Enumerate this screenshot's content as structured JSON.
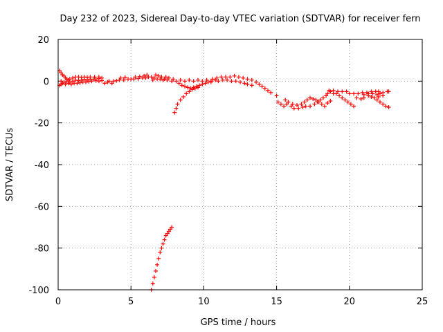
{
  "chart_data": {
    "type": "scatter",
    "title": "Day 232 of 2023, Sidereal Day-to-day VTEC variation (SDTVAR) for receiver fern",
    "xlabel": "GPS time / hours",
    "ylabel": "SDTVAR / TECUs",
    "xlim": [
      0,
      25
    ],
    "ylim": [
      -100,
      20
    ],
    "xticks": [
      "0",
      "5",
      "10",
      "15",
      "20",
      "25"
    ],
    "yticks": [
      "20",
      "0",
      "-20",
      "-40",
      "-60",
      "-80",
      "-100"
    ],
    "xtick_values": [
      0,
      5,
      10,
      15,
      20,
      25
    ],
    "ytick_values": [
      20,
      0,
      -20,
      -40,
      -60,
      -80,
      -100
    ],
    "grid": true,
    "marker": "+",
    "color": "#ff0000",
    "series": [
      {
        "name": "SDTVAR",
        "points": [
          [
            0.1,
            5
          ],
          [
            0.2,
            4
          ],
          [
            0.3,
            3
          ],
          [
            0.4,
            2.5
          ],
          [
            0.5,
            1.5
          ],
          [
            0.6,
            1
          ],
          [
            0.7,
            0.5
          ],
          [
            0.8,
            1
          ],
          [
            1.0,
            1.5
          ],
          [
            1.2,
            2
          ],
          [
            1.4,
            2
          ],
          [
            1.6,
            1.8
          ],
          [
            1.8,
            2
          ],
          [
            2.0,
            1.8
          ],
          [
            2.2,
            2
          ],
          [
            2.5,
            2
          ],
          [
            2.8,
            2
          ],
          [
            3.0,
            1.5
          ],
          [
            0.1,
            -2
          ],
          [
            0.2,
            -1.5
          ],
          [
            0.3,
            -1
          ],
          [
            0.5,
            -1.5
          ],
          [
            0.7,
            -1
          ],
          [
            0.9,
            -1.5
          ],
          [
            1.1,
            -1
          ],
          [
            1.3,
            -1
          ],
          [
            1.5,
            -0.8
          ],
          [
            1.7,
            -0.5
          ],
          [
            1.9,
            -0.5
          ],
          [
            2.1,
            -0.2
          ],
          [
            2.3,
            0
          ],
          [
            2.6,
            0.2
          ],
          [
            2.8,
            0
          ],
          [
            3.0,
            0.3
          ],
          [
            0.2,
            0
          ],
          [
            0.4,
            -0.5
          ],
          [
            0.6,
            0
          ],
          [
            0.8,
            -0.5
          ],
          [
            1.0,
            0
          ],
          [
            1.2,
            0.5
          ],
          [
            1.4,
            0.3
          ],
          [
            1.6,
            0.5
          ],
          [
            1.8,
            0.8
          ],
          [
            2.0,
            0.5
          ],
          [
            2.2,
            1
          ],
          [
            2.4,
            0.8
          ],
          [
            2.6,
            1
          ],
          [
            2.8,
            1.2
          ],
          [
            3.2,
            -1
          ],
          [
            3.4,
            -0.5
          ],
          [
            3.5,
            0
          ],
          [
            3.7,
            -1
          ],
          [
            3.8,
            0
          ],
          [
            4.0,
            0.2
          ],
          [
            4.2,
            0.5
          ],
          [
            4.5,
            0.5
          ],
          [
            4.8,
            1
          ],
          [
            5.0,
            1
          ],
          [
            5.2,
            1
          ],
          [
            5.5,
            1.2
          ],
          [
            5.8,
            1.5
          ],
          [
            6.0,
            1.5
          ],
          [
            6.2,
            2
          ],
          [
            6.4,
            2
          ],
          [
            6.6,
            1.5
          ],
          [
            6.8,
            1
          ],
          [
            7.0,
            1
          ],
          [
            7.2,
            0.5
          ],
          [
            7.5,
            0.5
          ],
          [
            7.8,
            0
          ],
          [
            4.3,
            1.5
          ],
          [
            4.6,
            1.8
          ],
          [
            5.3,
            2
          ],
          [
            5.6,
            2.2
          ],
          [
            5.9,
            2.5
          ],
          [
            6.1,
            3
          ],
          [
            6.5,
            0.5
          ],
          [
            6.7,
            3
          ],
          [
            6.9,
            2.5
          ],
          [
            7.1,
            2
          ],
          [
            7.3,
            1
          ],
          [
            7.4,
            2
          ],
          [
            7.6,
            1.5
          ],
          [
            7.9,
            1
          ],
          [
            8.0,
            -15
          ],
          [
            8.1,
            -13
          ],
          [
            8.2,
            -11
          ],
          [
            8.4,
            -9
          ],
          [
            8.6,
            -7.5
          ],
          [
            8.8,
            -6
          ],
          [
            9.0,
            -5
          ],
          [
            9.2,
            -4
          ],
          [
            9.4,
            -3.5
          ],
          [
            9.6,
            -3
          ],
          [
            8.3,
            -1
          ],
          [
            8.5,
            -2
          ],
          [
            8.7,
            -2.5
          ],
          [
            8.9,
            -3
          ],
          [
            9.1,
            -3.5
          ],
          [
            9.3,
            -3
          ],
          [
            9.5,
            -2.5
          ],
          [
            9.7,
            -2
          ],
          [
            9.9,
            -1.5
          ],
          [
            10.1,
            -1
          ],
          [
            10.3,
            -0.5
          ],
          [
            10.5,
            -0.5
          ],
          [
            8.1,
            0
          ],
          [
            8.4,
            0.5
          ],
          [
            8.7,
            0
          ],
          [
            9.0,
            0.5
          ],
          [
            9.3,
            0
          ],
          [
            9.6,
            0.5
          ],
          [
            9.9,
            0
          ],
          [
            10.2,
            0.5
          ],
          [
            10.5,
            0
          ],
          [
            10.8,
            0.5
          ],
          [
            11.0,
            0
          ],
          [
            11.3,
            0.5
          ],
          [
            11.6,
            0.5
          ],
          [
            11.9,
            0
          ],
          [
            12.2,
            0
          ],
          [
            12.5,
            -0.5
          ],
          [
            12.8,
            -1
          ],
          [
            13.0,
            -1.5
          ],
          [
            13.3,
            -2
          ],
          [
            10.6,
            1
          ],
          [
            10.9,
            1.5
          ],
          [
            11.2,
            2
          ],
          [
            11.5,
            2
          ],
          [
            11.8,
            2
          ],
          [
            12.1,
            2.5
          ],
          [
            12.4,
            2
          ],
          [
            12.7,
            1.5
          ],
          [
            13.0,
            1
          ],
          [
            13.3,
            0.5
          ],
          [
            13.6,
            -0.5
          ],
          [
            13.8,
            -1.5
          ],
          [
            14.0,
            -2.5
          ],
          [
            14.2,
            -3.5
          ],
          [
            14.4,
            -4.5
          ],
          [
            14.6,
            -5.5
          ],
          [
            15.0,
            -7
          ],
          [
            15.1,
            -10
          ],
          [
            15.3,
            -11
          ],
          [
            15.5,
            -12
          ],
          [
            15.7,
            -11
          ],
          [
            16.0,
            -12
          ],
          [
            16.2,
            -13
          ],
          [
            16.5,
            -13
          ],
          [
            16.8,
            -12.5
          ],
          [
            17.0,
            -12
          ],
          [
            17.3,
            -12
          ],
          [
            17.6,
            -11
          ],
          [
            17.8,
            -10
          ],
          [
            18.0,
            -9
          ],
          [
            18.2,
            -8
          ],
          [
            18.4,
            -7
          ],
          [
            15.6,
            -9
          ],
          [
            15.8,
            -10
          ],
          [
            16.1,
            -11
          ],
          [
            16.4,
            -11.5
          ],
          [
            16.7,
            -11
          ],
          [
            16.9,
            -10
          ],
          [
            17.1,
            -9
          ],
          [
            17.3,
            -8
          ],
          [
            17.5,
            -8.5
          ],
          [
            17.7,
            -9
          ],
          [
            17.9,
            -10
          ],
          [
            18.1,
            -11
          ],
          [
            18.3,
            -12
          ],
          [
            18.5,
            -10.5
          ],
          [
            18.7,
            -9.5
          ],
          [
            18.5,
            -6
          ],
          [
            18.7,
            -5
          ],
          [
            18.9,
            -6
          ],
          [
            19.1,
            -6
          ],
          [
            19.3,
            -7
          ],
          [
            19.5,
            -8
          ],
          [
            19.7,
            -9
          ],
          [
            19.9,
            -10
          ],
          [
            20.1,
            -11
          ],
          [
            20.3,
            -12
          ],
          [
            18.6,
            -4.5
          ],
          [
            18.9,
            -4.5
          ],
          [
            19.2,
            -5
          ],
          [
            19.5,
            -5
          ],
          [
            19.8,
            -5
          ],
          [
            20.0,
            -6
          ],
          [
            20.3,
            -6
          ],
          [
            20.6,
            -6
          ],
          [
            20.9,
            -5.5
          ],
          [
            21.2,
            -5.5
          ],
          [
            21.5,
            -5
          ],
          [
            21.8,
            -5
          ],
          [
            22.0,
            -5
          ],
          [
            22.3,
            -5.5
          ],
          [
            22.6,
            -5
          ],
          [
            22.7,
            -5
          ],
          [
            20.5,
            -8
          ],
          [
            20.8,
            -8.5
          ],
          [
            21.0,
            -8
          ],
          [
            21.3,
            -7
          ],
          [
            21.5,
            -7.5
          ],
          [
            21.7,
            -8
          ],
          [
            21.9,
            -9
          ],
          [
            22.1,
            -10
          ],
          [
            22.3,
            -11
          ],
          [
            22.5,
            -12
          ],
          [
            22.7,
            -12.5
          ],
          [
            21.0,
            -6.5
          ],
          [
            21.3,
            -6
          ],
          [
            21.6,
            -6
          ],
          [
            21.9,
            -6.5
          ],
          [
            22.1,
            -6
          ],
          [
            22.3,
            -7
          ],
          [
            22.0,
            -7.5
          ],
          [
            6.4,
            -100
          ],
          [
            6.5,
            -97
          ],
          [
            6.6,
            -94
          ],
          [
            6.7,
            -91
          ],
          [
            6.8,
            -88
          ],
          [
            6.9,
            -85
          ],
          [
            7.0,
            -82
          ],
          [
            7.1,
            -80
          ],
          [
            7.2,
            -78
          ],
          [
            7.3,
            -76
          ],
          [
            7.4,
            -74
          ],
          [
            7.5,
            -73
          ],
          [
            7.6,
            -72
          ],
          [
            7.7,
            -71
          ],
          [
            7.8,
            -70
          ]
        ]
      }
    ]
  }
}
